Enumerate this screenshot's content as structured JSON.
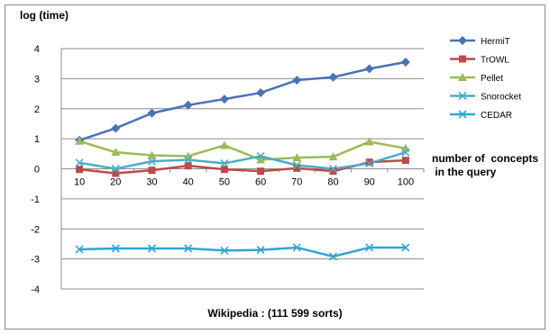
{
  "chart_data": {
    "type": "line",
    "title": "",
    "ylabel": "log (time)",
    "xlabel_lines": [
      "number of  concepts",
      " in the query"
    ],
    "footer": "Wikipedia : (111 599 sorts)",
    "ylim": [
      -4,
      4
    ],
    "yticks": [
      4,
      3,
      2,
      1,
      0,
      -1,
      -2,
      -3,
      -4
    ],
    "x": [
      10,
      20,
      30,
      40,
      50,
      60,
      70,
      80,
      90,
      100
    ],
    "grid": "horizontal",
    "legend_position": "right",
    "series": [
      {
        "name": "HermiT",
        "color": "#4a73b5",
        "marker": "diamond",
        "values": [
          0.95,
          1.35,
          1.85,
          2.12,
          2.32,
          2.53,
          2.95,
          3.05,
          3.33,
          3.55
        ]
      },
      {
        "name": "TrOWL",
        "color": "#bc4a48",
        "marker": "square",
        "values": [
          -0.02,
          -0.15,
          -0.05,
          0.1,
          -0.02,
          -0.08,
          0.02,
          -0.08,
          0.22,
          0.28
        ]
      },
      {
        "name": "Pellet",
        "color": "#9bbb59",
        "marker": "triangle",
        "values": [
          0.92,
          0.55,
          0.45,
          0.42,
          0.78,
          0.3,
          0.37,
          0.4,
          0.9,
          0.68
        ]
      },
      {
        "name": "Snorocket",
        "color": "#4bacc6",
        "marker": "x",
        "values": [
          0.2,
          0.0,
          0.25,
          0.3,
          0.18,
          0.42,
          0.12,
          0.0,
          0.18,
          0.55
        ]
      },
      {
        "name": "CEDAR",
        "color": "#2fa4d8",
        "marker": "x",
        "values": [
          -2.68,
          -2.65,
          -2.65,
          -2.65,
          -2.72,
          -2.7,
          -2.62,
          -2.92,
          -2.62,
          -2.62
        ]
      }
    ]
  }
}
